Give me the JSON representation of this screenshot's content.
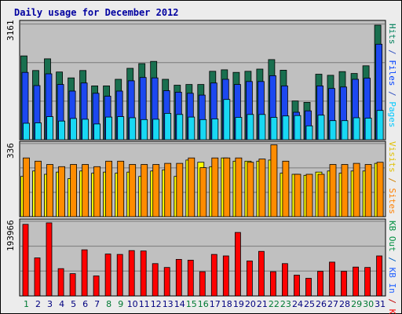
{
  "title": "Daily usage for December 2012",
  "colors": {
    "background": "#ececec",
    "panel": "#c0c0c0",
    "title": "#0000a0",
    "hits": "#196f4f",
    "files": "#1c48f0",
    "pages": "#18d8f4",
    "visits": "#ffff00",
    "sites": "#ff8c00",
    "kbytes": "#ff0000",
    "grid": "#7a7a7a",
    "weekend_day": "#007a33",
    "weekday_day": "#000080"
  },
  "axis_labels": {
    "top_max": "3161",
    "mid_max": "336",
    "bottom_max": "193966"
  },
  "legends": {
    "top": [
      {
        "text": "Hits",
        "color": "#00805c"
      },
      {
        "text": "/",
        "color": "#3050c0"
      },
      {
        "text": "Files",
        "color": "#0040ff"
      },
      {
        "text": "/",
        "color": "#3050c0"
      },
      {
        "text": "Pages",
        "color": "#00c8ff"
      }
    ],
    "mid": [
      {
        "text": "Visits",
        "color": "#e0c000"
      },
      {
        "text": "/",
        "color": "#d08000"
      },
      {
        "text": "Sites",
        "color": "#ff8000"
      }
    ],
    "bottom": [
      {
        "text": "KB Out",
        "color": "#009040"
      },
      {
        "text": "/",
        "color": "#0060c0"
      },
      {
        "text": "KB In",
        "color": "#2060ff"
      },
      {
        "text": "/",
        "color": "#c00000"
      },
      {
        "text": "KB F",
        "color": "#ff0000"
      }
    ]
  },
  "chart_data": [
    {
      "type": "bar",
      "title": "Daily usage for December 2012",
      "categories": [
        "1",
        "2",
        "3",
        "4",
        "5",
        "6",
        "7",
        "8",
        "9",
        "10",
        "11",
        "12",
        "13",
        "14",
        "15",
        "16",
        "17",
        "18",
        "19",
        "20",
        "21",
        "22",
        "23",
        "24",
        "25",
        "26",
        "27",
        "28",
        "29",
        "30",
        "31"
      ],
      "ymax_label": "3161",
      "ylim": [
        0,
        3161
      ],
      "series": [
        {
          "name": "Hits",
          "values": [
            2290,
            1890,
            2210,
            1850,
            1690,
            1890,
            1470,
            1470,
            1650,
            1950,
            2080,
            2140,
            1650,
            1490,
            1510,
            1510,
            1870,
            1910,
            1840,
            1870,
            1930,
            2190,
            1900,
            1060,
            1020,
            1790,
            1760,
            1860,
            1810,
            2020,
            3130
          ]
        },
        {
          "name": "Files",
          "values": [
            1840,
            1480,
            1800,
            1510,
            1330,
            1550,
            1270,
            1190,
            1330,
            1610,
            1700,
            1690,
            1340,
            1300,
            1270,
            1220,
            1550,
            1650,
            1510,
            1590,
            1590,
            1750,
            1470,
            750,
            790,
            1470,
            1400,
            1440,
            1650,
            1680,
            2610
          ]
        },
        {
          "name": "Pages",
          "values": [
            450,
            460,
            630,
            510,
            580,
            560,
            430,
            620,
            630,
            600,
            550,
            560,
            720,
            690,
            620,
            550,
            570,
            1100,
            610,
            690,
            690,
            610,
            650,
            660,
            380,
            670,
            520,
            520,
            600,
            590,
            800
          ]
        }
      ],
      "grid": true,
      "legend": "right-vertical"
    },
    {
      "type": "bar",
      "categories": [
        "1",
        "2",
        "3",
        "4",
        "5",
        "6",
        "7",
        "8",
        "9",
        "10",
        "11",
        "12",
        "13",
        "14",
        "15",
        "16",
        "17",
        "18",
        "19",
        "20",
        "21",
        "22",
        "23",
        "24",
        "25",
        "26",
        "27",
        "28",
        "29",
        "30",
        "31"
      ],
      "ymax_label": "336",
      "ylim": [
        0,
        336
      ],
      "series": [
        {
          "name": "Visits",
          "values": [
            185,
            210,
            195,
            205,
            175,
            210,
            200,
            205,
            200,
            205,
            185,
            210,
            215,
            185,
            260,
            250,
            230,
            270,
            255,
            255,
            255,
            260,
            200,
            195,
            190,
            205,
            210,
            200,
            210,
            210,
            245
          ]
        },
        {
          "name": "Sites",
          "values": [
            270,
            255,
            240,
            230,
            240,
            240,
            230,
            255,
            255,
            240,
            240,
            240,
            245,
            245,
            270,
            225,
            270,
            270,
            270,
            250,
            265,
            330,
            255,
            195,
            195,
            195,
            240,
            240,
            245,
            240,
            250
          ]
        }
      ],
      "grid": true,
      "legend": "right-vertical"
    },
    {
      "type": "bar",
      "categories": [
        "1",
        "2",
        "3",
        "4",
        "5",
        "6",
        "7",
        "8",
        "9",
        "10",
        "11",
        "12",
        "13",
        "14",
        "15",
        "16",
        "17",
        "18",
        "19",
        "20",
        "21",
        "22",
        "23",
        "24",
        "25",
        "26",
        "27",
        "28",
        "29",
        "30",
        "31"
      ],
      "ymax_label": "193966",
      "ylim": [
        0,
        193966
      ],
      "series": [
        {
          "name": "KB F",
          "values": [
            186000,
            99000,
            190000,
            71000,
            58000,
            120000,
            52000,
            109000,
            108000,
            118000,
            117000,
            84000,
            74000,
            95000,
            93000,
            63000,
            108000,
            104000,
            165000,
            91000,
            116000,
            63000,
            84000,
            54000,
            46000,
            64000,
            88000,
            64000,
            75000,
            74000,
            104000
          ]
        }
      ],
      "grid": true,
      "legend": "right-vertical"
    }
  ],
  "weekend_days": [
    1,
    8,
    9,
    15,
    16,
    22,
    23,
    29,
    30
  ]
}
